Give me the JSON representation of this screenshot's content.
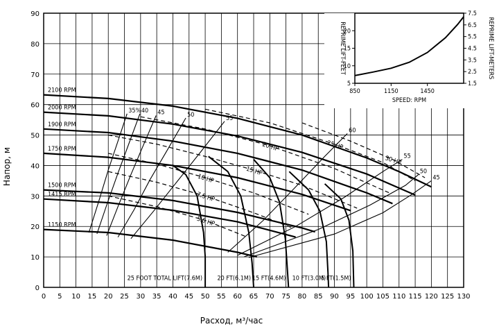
{
  "chart_data": {
    "type": "line",
    "xlabel": "Расход, м³/час",
    "ylabel": "Напор, м",
    "xlim": [
      0,
      130
    ],
    "ylim": [
      0,
      90
    ],
    "x_ticks": [
      0,
      5,
      10,
      15,
      20,
      25,
      30,
      35,
      40,
      45,
      50,
      55,
      60,
      65,
      70,
      75,
      80,
      85,
      90,
      95,
      100,
      105,
      110,
      115,
      120,
      125,
      130
    ],
    "y_ticks": [
      0,
      10,
      20,
      30,
      40,
      50,
      60,
      70,
      80,
      90
    ],
    "grid": true,
    "speed_curves": [
      {
        "name": "2100 RPM",
        "points": [
          [
            0,
            63.2
          ],
          [
            20,
            62
          ],
          [
            40,
            59.5
          ],
          [
            60,
            55.5
          ],
          [
            80,
            50
          ],
          [
            100,
            42.5
          ],
          [
            110,
            38
          ],
          [
            120,
            33
          ]
        ]
      },
      {
        "name": "2000 RPM",
        "points": [
          [
            0,
            57.5
          ],
          [
            20,
            56.3
          ],
          [
            40,
            53.6
          ],
          [
            60,
            49.7
          ],
          [
            80,
            44.3
          ],
          [
            100,
            37.2
          ],
          [
            115,
            30.3
          ]
        ]
      },
      {
        "name": "1900 RPM",
        "points": [
          [
            0,
            52
          ],
          [
            20,
            50.8
          ],
          [
            40,
            48
          ],
          [
            60,
            44
          ],
          [
            80,
            38.5
          ],
          [
            100,
            31
          ],
          [
            108,
            27.5
          ]
        ]
      },
      {
        "name": "1750 RPM",
        "points": [
          [
            0,
            44
          ],
          [
            20,
            42.7
          ],
          [
            40,
            40
          ],
          [
            60,
            36
          ],
          [
            80,
            30.5
          ],
          [
            95,
            25.2
          ]
        ]
      },
      {
        "name": "1500 RPM",
        "points": [
          [
            0,
            32
          ],
          [
            20,
            31
          ],
          [
            40,
            28.5
          ],
          [
            60,
            24.6
          ],
          [
            80,
            19.5
          ],
          [
            84,
            18.2
          ]
        ]
      },
      {
        "name": "1415 RPM",
        "points": [
          [
            0,
            29
          ],
          [
            20,
            27.8
          ],
          [
            40,
            25.3
          ],
          [
            60,
            21.5
          ],
          [
            78,
            16.5
          ]
        ]
      },
      {
        "name": "1150 RPM",
        "points": [
          [
            0,
            19
          ],
          [
            20,
            18
          ],
          [
            40,
            15.5
          ],
          [
            60,
            11.5
          ],
          [
            66,
            10
          ]
        ]
      }
    ],
    "efficiency_curves": [
      {
        "name": "35%",
        "points": [
          [
            14,
            18
          ],
          [
            17,
            28
          ],
          [
            20,
            38.5
          ],
          [
            23,
            48
          ],
          [
            25.8,
            57
          ]
        ]
      },
      {
        "name": "40",
        "points": [
          [
            16.5,
            17.6
          ],
          [
            19.5,
            27
          ],
          [
            23,
            37.5
          ],
          [
            26.5,
            47.5
          ],
          [
            29.8,
            57
          ]
        ]
      },
      {
        "name": "45",
        "points": [
          [
            19.5,
            17
          ],
          [
            23,
            26.5
          ],
          [
            27,
            37
          ],
          [
            31,
            47
          ],
          [
            34.8,
            56.4
          ]
        ]
      },
      {
        "name": "50",
        "points": [
          [
            23,
            16.5
          ],
          [
            28,
            25.5
          ],
          [
            33,
            35.5
          ],
          [
            38.5,
            45.5
          ],
          [
            44,
            55.6
          ]
        ]
      },
      {
        "name": "55",
        "points": [
          [
            27,
            16
          ],
          [
            34,
            25
          ],
          [
            41.5,
            35
          ],
          [
            49,
            45
          ],
          [
            56,
            54.5
          ]
        ]
      },
      {
        "name": "60",
        "points": [
          [
            57,
            11.5
          ],
          [
            68,
            22
          ],
          [
            78,
            33
          ],
          [
            87,
            43
          ],
          [
            94,
            50.5
          ]
        ]
      },
      {
        "name": "55",
        "points": [
          [
            60,
            10.5
          ],
          [
            78,
            20
          ],
          [
            93,
            29.5
          ],
          [
            105,
            38
          ],
          [
            111,
            42
          ]
        ]
      },
      {
        "name": "50",
        "points": [
          [
            62,
            10
          ],
          [
            85,
            19
          ],
          [
            101,
            27
          ],
          [
            112,
            33.5
          ],
          [
            116,
            37
          ]
        ]
      },
      {
        "name": "45",
        "points": [
          [
            63.5,
            9.8
          ],
          [
            90,
            17.5
          ],
          [
            105,
            24.5
          ],
          [
            114,
            30.5
          ],
          [
            120,
            35
          ]
        ]
      }
    ],
    "power_curves": [
      {
        "name": "5.0 HP",
        "points": [
          [
            20,
            30
          ],
          [
            35,
            26.5
          ],
          [
            50,
            22
          ],
          [
            63,
            16.5
          ]
        ]
      },
      {
        "name": "7.5 HP",
        "points": [
          [
            20,
            38
          ],
          [
            35,
            34.5
          ],
          [
            50,
            30
          ],
          [
            65,
            24.5
          ],
          [
            77,
            19.5
          ]
        ]
      },
      {
        "name": "10 HP",
        "points": [
          [
            20,
            44
          ],
          [
            35,
            40.5
          ],
          [
            50,
            36
          ],
          [
            65,
            31
          ],
          [
            82,
            24
          ]
        ]
      },
      {
        "name": "15 HP",
        "points": [
          [
            20,
            50
          ],
          [
            35,
            47
          ],
          [
            50,
            43
          ],
          [
            65,
            38.5
          ],
          [
            80,
            33.5
          ],
          [
            97,
            26
          ]
        ]
      },
      {
        "name": "20 HP",
        "points": [
          [
            30,
            56
          ],
          [
            50,
            52
          ],
          [
            70,
            46.5
          ],
          [
            90,
            39
          ],
          [
            107,
            31
          ]
        ]
      },
      {
        "name": "25 HP",
        "points": [
          [
            50,
            58.5
          ],
          [
            70,
            54
          ],
          [
            90,
            47
          ],
          [
            105,
            41
          ],
          [
            115,
            35
          ]
        ]
      },
      {
        "name": "30 HP",
        "points": [
          [
            80,
            54
          ],
          [
            95,
            48
          ],
          [
            108,
            42
          ],
          [
            118,
            36
          ]
        ]
      }
    ],
    "npsh_curves": [
      {
        "name": "25 FOOT TOTAL LIFT(7.6M)",
        "points": [
          [
            40,
            40
          ],
          [
            44,
            37
          ],
          [
            47.5,
            30
          ],
          [
            49.5,
            18
          ],
          [
            50,
            10
          ],
          [
            50,
            0
          ]
        ]
      },
      {
        "name": "20 FT(6.1M)",
        "points": [
          [
            51,
            43
          ],
          [
            57,
            38
          ],
          [
            61,
            30
          ],
          [
            63.5,
            18
          ],
          [
            64.5,
            8
          ],
          [
            65,
            0
          ]
        ]
      },
      {
        "name": "15 FT(4.6M)",
        "points": [
          [
            65,
            42
          ],
          [
            70,
            36
          ],
          [
            73,
            28
          ],
          [
            74.8,
            16
          ],
          [
            75.5,
            5
          ],
          [
            75.8,
            0
          ]
        ]
      },
      {
        "name": "10 FT(3.0M)",
        "points": [
          [
            76,
            38
          ],
          [
            82,
            32
          ],
          [
            85.5,
            25
          ],
          [
            87.5,
            15
          ],
          [
            88,
            5
          ],
          [
            88.2,
            0
          ]
        ]
      },
      {
        "name": "5 FT(1.5M)",
        "points": [
          [
            87,
            34
          ],
          [
            92,
            29
          ],
          [
            94.5,
            22
          ],
          [
            95.7,
            12
          ],
          [
            96,
            0
          ]
        ]
      }
    ],
    "power_labels": [
      "5.0 HP",
      "7.5 HP",
      "10 HP",
      "15 HP",
      "20 HP",
      "25 HP",
      "30 HP"
    ],
    "inset": {
      "xlabel": "SPEED: RPM",
      "ylabel_left": "REPRIME LIFT-FEET",
      "ylabel_right": "REPRIME LIFT-METERS",
      "xlim": [
        850,
        1750
      ],
      "ylim_feet": [
        5,
        25
      ],
      "x_ticks": [
        850,
        1150,
        1450
      ],
      "y_ticks_feet": [
        5,
        10,
        15,
        20
      ],
      "y_ticks_meters": [
        1.5,
        2.5,
        3.5,
        4.5,
        5.5,
        6.5,
        7.5
      ],
      "curve": [
        [
          850,
          7.2
        ],
        [
          1000,
          8.2
        ],
        [
          1150,
          9.3
        ],
        [
          1300,
          11
        ],
        [
          1450,
          13.8
        ],
        [
          1600,
          18
        ],
        [
          1700,
          21.8
        ],
        [
          1750,
          24
        ]
      ]
    }
  }
}
